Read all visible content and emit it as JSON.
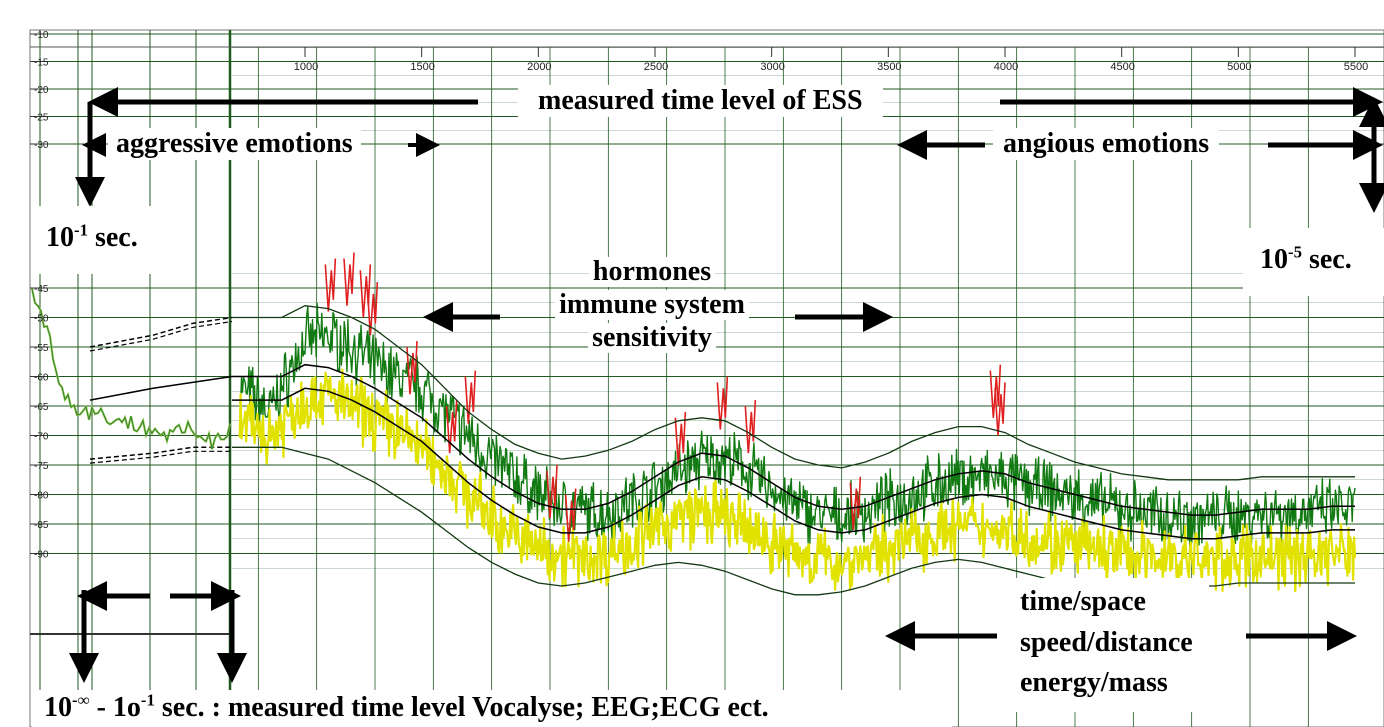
{
  "chart_data": {
    "type": "line",
    "x_ticks": [
      1000,
      1500,
      2000,
      2500,
      3000,
      3500,
      4000,
      4500,
      5000,
      5500
    ],
    "x_tick_labels": [
      "1000",
      "1500",
      "2000",
      "2500",
      "3000",
      "3500",
      "4000",
      "4500",
      "5000",
      "5500"
    ],
    "y_ticks": [
      -10,
      -15,
      -20,
      -25,
      -30,
      -45,
      -50,
      -55,
      -60,
      -65,
      -70,
      -75,
      -80,
      -85,
      -90
    ],
    "y_tick_labels": [
      "-10",
      "-15",
      "-20",
      "-25",
      "-30",
      "-45",
      "-50",
      "-55",
      "-60",
      "-65",
      "-70",
      "-75",
      "-80",
      "-85",
      "-90"
    ],
    "xlim": [
      700,
      5550
    ],
    "ylim": [
      -10,
      -95
    ],
    "grid": true,
    "series": [
      {
        "color": "#127a12",
        "style": "noisy-signal",
        "x": [
          720,
          800,
          850,
          900,
          1000,
          1100,
          1200,
          1300,
          1400,
          1500,
          1600,
          1700,
          1800,
          1900,
          2000,
          2100,
          2200,
          2300,
          2400,
          2500,
          2600,
          2700,
          2800,
          2900,
          3000,
          3100,
          3200,
          3300,
          3400,
          3500,
          3600,
          3700,
          3800,
          3900,
          4000,
          4100,
          4200,
          4300,
          4400,
          4500,
          4600,
          4700,
          4800,
          4900,
          5000,
          5100,
          5200,
          5300,
          5400,
          5500
        ],
        "values": [
          -62,
          -64,
          -66,
          -62,
          -54,
          -53,
          -55,
          -58,
          -60,
          -62,
          -66,
          -70,
          -74,
          -77,
          -80,
          -82,
          -83,
          -83,
          -81,
          -79,
          -76,
          -74,
          -74,
          -76,
          -79,
          -82,
          -83.5,
          -84,
          -83,
          -81.5,
          -80,
          -78.5,
          -77.5,
          -77,
          -77.5,
          -78.5,
          -79.5,
          -80.5,
          -81.5,
          -82.5,
          -83,
          -83.5,
          -84,
          -84,
          -83.5,
          -83,
          -83,
          -83,
          -82.5,
          -82.5
        ]
      },
      {
        "color": "#e2e200",
        "style": "noisy-signal",
        "x": [
          720,
          800,
          850,
          900,
          1000,
          1100,
          1200,
          1300,
          1400,
          1500,
          1600,
          1700,
          1800,
          1900,
          2000,
          2100,
          2200,
          2300,
          2400,
          2500,
          2600,
          2700,
          2800,
          2900,
          3000,
          3100,
          3200,
          3300,
          3400,
          3500,
          3600,
          3700,
          3800,
          3900,
          4000,
          4100,
          4200,
          4300,
          4400,
          4500,
          4600,
          4700,
          4800,
          4900,
          5000,
          5100,
          5200,
          5300,
          5400,
          5500
        ],
        "values": [
          -68,
          -69,
          -70,
          -68,
          -64,
          -63,
          -65,
          -67,
          -69,
          -72,
          -76,
          -80,
          -84,
          -87,
          -89,
          -90,
          -91,
          -90,
          -88,
          -86,
          -84,
          -83,
          -84,
          -86,
          -88,
          -90,
          -91,
          -91.5,
          -90.5,
          -89,
          -87.5,
          -86.5,
          -85.5,
          -85.5,
          -86,
          -87,
          -88,
          -89,
          -89.5,
          -90,
          -90.5,
          -90.5,
          -91,
          -91,
          -91,
          -90.5,
          -90.5,
          -90,
          -90,
          -90
        ]
      },
      {
        "color": "#e02020",
        "style": "spikes",
        "x": [
          1100,
          1180,
          1250,
          1280,
          1450,
          1620,
          1700,
          2050,
          2130,
          2600,
          2780,
          2900,
          3350,
          3950,
          3970
        ],
        "values": [
          -49,
          -48,
          -50,
          -53,
          -63,
          -73,
          -68,
          -84,
          -88,
          -75,
          -69,
          -73,
          -86,
          -67,
          -70
        ]
      },
      {
        "color": "#000000",
        "style": "smooth",
        "x": [
          720,
          900,
          1000,
          1100,
          1200,
          1300,
          1400,
          1500,
          1600,
          1700,
          1800,
          1900,
          2000,
          2100,
          2200,
          2300,
          2400,
          2500,
          2600,
          2700,
          2800,
          2900,
          3000,
          3100,
          3200,
          3300,
          3400,
          3500,
          3600,
          3700,
          3800,
          3900,
          4000,
          4100,
          4200,
          4300,
          4400,
          4500,
          4600,
          4700,
          4800,
          4900,
          5000,
          5100,
          5200,
          5300,
          5400,
          5500
        ],
        "values": [
          -60,
          -60,
          -58,
          -58.5,
          -60,
          -62,
          -64.5,
          -67,
          -70.5,
          -74,
          -77,
          -79.5,
          -81.5,
          -82.5,
          -82.5,
          -81.5,
          -79.5,
          -77,
          -74.5,
          -73,
          -73.5,
          -75.5,
          -78,
          -80.5,
          -82,
          -82.5,
          -82,
          -80.5,
          -79,
          -77.5,
          -76.5,
          -76,
          -76.5,
          -78,
          -79,
          -80,
          -81,
          -82,
          -82.5,
          -83,
          -83.5,
          -83.5,
          -83,
          -82.5,
          -82.5,
          -82.5,
          -82,
          -82
        ]
      },
      {
        "color": "#000000",
        "style": "smooth",
        "x": [
          720,
          900,
          1000,
          1100,
          1200,
          1300,
          1400,
          1500,
          1600,
          1700,
          1800,
          1900,
          2000,
          2100,
          2200,
          2300,
          2400,
          2500,
          2600,
          2700,
          2800,
          2900,
          3000,
          3100,
          3200,
          3300,
          3400,
          3500,
          3600,
          3700,
          3800,
          3900,
          4000,
          4100,
          4200,
          4300,
          4400,
          4500,
          4600,
          4700,
          4800,
          4900,
          5000,
          5100,
          5200,
          5300,
          5400,
          5500
        ],
        "values": [
          -64,
          -64,
          -62,
          -62.5,
          -64,
          -66,
          -68.5,
          -71,
          -74.5,
          -78,
          -81,
          -83.5,
          -85.5,
          -86.5,
          -86.5,
          -85.5,
          -83.5,
          -81,
          -78.5,
          -77,
          -77.5,
          -79.5,
          -82,
          -84.5,
          -86,
          -86.5,
          -86,
          -84.5,
          -83,
          -81.5,
          -80.5,
          -80,
          -80.5,
          -82,
          -83,
          -84,
          -85,
          -86,
          -86.5,
          -87,
          -87.5,
          -87.5,
          -87,
          -86.5,
          -86.5,
          -86.5,
          -86,
          -86
        ]
      },
      {
        "color": "#143814",
        "style": "envelope",
        "x": [
          720,
          900,
          1000,
          1100,
          1200,
          1300,
          1400,
          1500,
          1600,
          1700,
          1800,
          1900,
          2000,
          2100,
          2200,
          2300,
          2400,
          2500,
          2600,
          2700,
          2800,
          2900,
          3000,
          3100,
          3200,
          3300,
          3400,
          3500,
          3600,
          3700,
          3800,
          3900,
          4000,
          4100,
          4200,
          4300,
          4400,
          4500,
          4600,
          4700,
          4800,
          4900,
          5000,
          5100,
          5200,
          5300,
          5400,
          5500
        ],
        "values": [
          -50,
          -50,
          -48,
          -48.5,
          -50,
          -52,
          -55,
          -58,
          -62,
          -66,
          -69,
          -71.5,
          -73,
          -74,
          -73.5,
          -72.5,
          -71,
          -69,
          -67.5,
          -67,
          -67.5,
          -69.5,
          -72,
          -74,
          -75,
          -75.5,
          -74.5,
          -73,
          -71,
          -69.5,
          -68.5,
          -68.5,
          -69.5,
          -71.5,
          -73,
          -74.5,
          -75.5,
          -76.5,
          -77,
          -77.5,
          -77.5,
          -77.5,
          -77.5,
          -77,
          -77,
          -77,
          -77,
          -77
        ]
      },
      {
        "color": "#143814",
        "style": "envelope",
        "x": [
          720,
          900,
          1000,
          1100,
          1200,
          1300,
          1400,
          1500,
          1600,
          1700,
          1800,
          1900,
          2000,
          2100,
          2200,
          2300,
          2400,
          2500,
          2600,
          2700,
          2800,
          2900,
          3000,
          3100,
          3200,
          3300,
          3400,
          3500,
          3600,
          3700,
          3800,
          3900,
          4000,
          4100,
          4200,
          4300,
          4400,
          4500,
          4600,
          4700,
          4800,
          4900,
          5000,
          5100,
          5200,
          5300,
          5400,
          5500
        ],
        "values": [
          -72,
          -72,
          -73,
          -74,
          -76,
          -78,
          -80.5,
          -83,
          -86,
          -89,
          -91.5,
          -93.5,
          -95,
          -95.5,
          -95,
          -94,
          -93,
          -92,
          -91.5,
          -92,
          -93,
          -94.5,
          -96,
          -97,
          -97,
          -96.5,
          -95.5,
          -94,
          -92.5,
          -91.5,
          -91,
          -91.5,
          -92.5,
          -93.5,
          -94.5,
          -95,
          -95.5,
          -95.5,
          -95.5,
          -95.5,
          -95.5,
          -95.5,
          -95,
          -95,
          -95,
          -95,
          -95,
          -95
        ]
      },
      {
        "color": "#000000",
        "style": "dashed-left",
        "x": [
          720,
          800,
          850,
          900
        ],
        "values": [
          -55,
          -53,
          -51,
          -50
        ]
      },
      {
        "color": "#000000",
        "style": "dashed-left",
        "x": [
          720,
          800,
          850,
          900
        ],
        "values": [
          -74,
          -73,
          -72,
          -72
        ]
      },
      {
        "color": "#000000",
        "style": "solid-left",
        "x": [
          720,
          800,
          850,
          900
        ],
        "values": [
          -64,
          -62,
          -61,
          -60
        ]
      },
      {
        "color": "#2a7a2a",
        "style": "left-signal",
        "x": [
          700,
          720,
          730,
          740,
          760,
          780,
          800,
          820,
          840,
          860,
          880,
          900
        ],
        "values": [
          -45,
          -55,
          -62,
          -65,
          -66,
          -67,
          -68,
          -69,
          -70,
          -69,
          -71,
          -68
        ]
      }
    ],
    "annotations": [
      {
        "text": "measured time level of ESS"
      },
      {
        "text": "aggressive emotions"
      },
      {
        "text": "angious emotions"
      },
      {
        "text": "hormones"
      },
      {
        "text": "immune system"
      },
      {
        "text": "sensitivity"
      },
      {
        "text": "time/space"
      },
      {
        "text": "speed/distance"
      },
      {
        "text": "energy/mass"
      },
      {
        "text": "10",
        "sup": "-1",
        "rest": " sec."
      },
      {
        "text": "10",
        "sup": "-5",
        "rest": " sec."
      },
      {
        "text": "10",
        "sup": "-∞",
        "rest": " - 1o",
        "sup2": "-1",
        "rest2": " sec. : measured time level Vocalyse;  EEG;ECG ect."
      }
    ]
  }
}
